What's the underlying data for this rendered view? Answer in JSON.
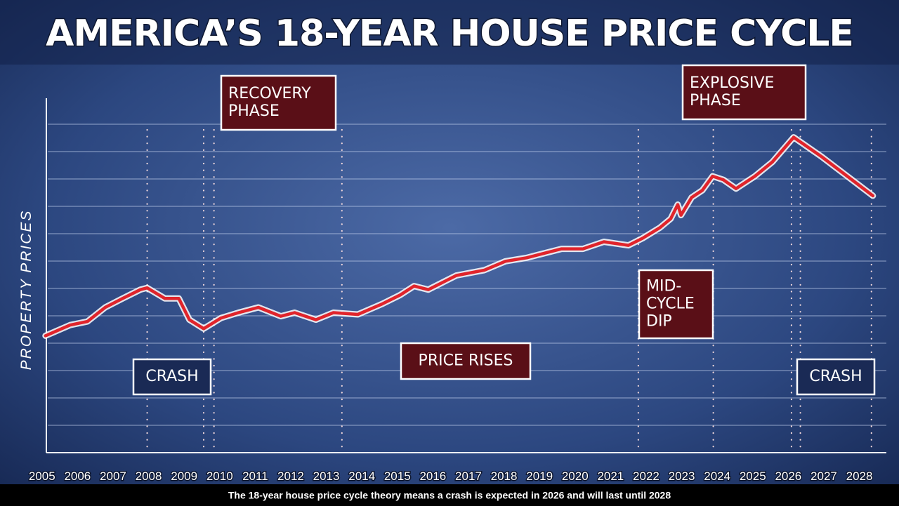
{
  "chart_data": {
    "type": "line",
    "title": "AMERICA’S 18-YEAR HOUSE PRICE CYCLE",
    "y_label": "PROPERTY PRICES",
    "caption": "The 18-year house price cycle theory means a crash is expected in 2026 and will last until 2028",
    "xlim": [
      2004.57,
      2028.72
    ],
    "ylim": [
      0,
      100
    ],
    "xticks": [
      2005,
      2006,
      2007,
      2008,
      2009,
      2010,
      2011,
      2012,
      2013,
      2014,
      2015,
      2016,
      2017,
      2018,
      2019,
      2020,
      2021,
      2022,
      2023,
      2024,
      2025,
      2026,
      2027,
      2028
    ],
    "grid": true,
    "color": "#e0242b",
    "phase_lines": [
      2007.96,
      2009.55,
      2009.84,
      2013.44,
      2021.78,
      2023.89,
      2026.09,
      2026.34,
      2028.34
    ],
    "x": [
      2005.1,
      2005.79,
      2006.28,
      2006.78,
      2007.27,
      2007.77,
      2007.96,
      2008.46,
      2008.85,
      2009.15,
      2009.55,
      2010.04,
      2010.53,
      2011.09,
      2011.72,
      2012.11,
      2012.71,
      2013.2,
      2013.89,
      2014.58,
      2015.08,
      2015.47,
      2015.87,
      2016.66,
      2017.45,
      2018.04,
      2018.64,
      2019.62,
      2020.22,
      2020.81,
      2021.5,
      2021.9,
      2022.39,
      2022.69,
      2022.89,
      2022.98,
      2023.28,
      2023.58,
      2023.87,
      2024.17,
      2024.53,
      2025.06,
      2025.55,
      2026.15,
      2026.94,
      2028.38
    ],
    "values": [
      33,
      36,
      37,
      41,
      43.5,
      46,
      46.5,
      43.5,
      43.5,
      37.5,
      35,
      38,
      39.5,
      41,
      38.5,
      39.5,
      37.5,
      39.5,
      39,
      42,
      44.5,
      47,
      46,
      50,
      51.5,
      54,
      55,
      57.5,
      57.5,
      59.5,
      58.5,
      60.5,
      63.5,
      66,
      70,
      67,
      72,
      74,
      78,
      77,
      74.5,
      78,
      82,
      89,
      83.5,
      72.5
    ],
    "annotations": [
      {
        "lines": [
          "RECOVERY",
          "PHASE"
        ],
        "color": "#5a0f17"
      },
      {
        "lines": [
          "CRASH"
        ],
        "color": "#1a2a55"
      },
      {
        "lines": [
          "PRICE RISES"
        ],
        "color": "#5a0f17"
      },
      {
        "lines": [
          "MID-",
          "CYCLE",
          "DIP"
        ],
        "color": "#5a0f17"
      },
      {
        "lines": [
          "EXPLOSIVE",
          "PHASE"
        ],
        "color": "#5a0f17"
      },
      {
        "lines": [
          "CRASH"
        ],
        "color": "#1a2a55"
      }
    ]
  }
}
